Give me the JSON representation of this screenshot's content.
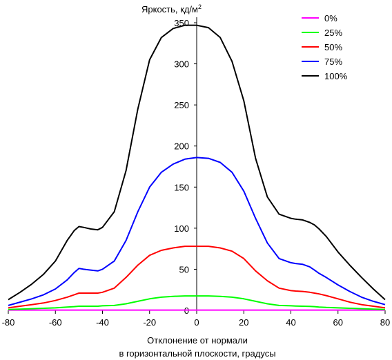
{
  "chart_data": {
    "type": "line",
    "title": "",
    "ylabel": "Яркость, кд/м",
    "ylabel_sup": "2",
    "xlabel_line1": "Отклонение от нормали",
    "xlabel_line2": "в горизонтальной плоскости, градусы",
    "xlim": [
      -80,
      80
    ],
    "ylim": [
      0,
      350
    ],
    "xticks": [
      -80,
      -60,
      -40,
      -20,
      0,
      20,
      40,
      60,
      80
    ],
    "yticks": [
      0,
      50,
      100,
      150,
      200,
      250,
      300,
      350
    ],
    "grid": false,
    "legend_position": "top-right",
    "x": [
      -80,
      -75,
      -70,
      -65,
      -60,
      -55,
      -52,
      -50,
      -48,
      -45,
      -42,
      -40,
      -35,
      -30,
      -25,
      -20,
      -15,
      -10,
      -5,
      0,
      5,
      10,
      15,
      20,
      25,
      30,
      35,
      40,
      42,
      45,
      48,
      50,
      52,
      55,
      60,
      65,
      70,
      75,
      80
    ],
    "series": [
      {
        "name": "0%",
        "color": "#ff00ff",
        "values": [
          0.3,
          0.3,
          0.3,
          0.3,
          0.3,
          0.3,
          0.3,
          0.3,
          0.3,
          0.3,
          0.3,
          0.3,
          0.3,
          0.3,
          0.3,
          0.3,
          0.3,
          0.3,
          0.3,
          0.3,
          0.3,
          0.3,
          0.3,
          0.3,
          0.3,
          0.3,
          0.3,
          0.3,
          0.3,
          0.3,
          0.3,
          0.3,
          0.3,
          0.3,
          0.3,
          0.3,
          0.3,
          0.3,
          0.3
        ]
      },
      {
        "name": "25%",
        "color": "#00ff00",
        "values": [
          1,
          1.5,
          2,
          2.5,
          3,
          4,
          4.5,
          5,
          5,
          5,
          5,
          5.5,
          6,
          8,
          11,
          14,
          16,
          17,
          17.5,
          17.5,
          17.5,
          17,
          16,
          14,
          11,
          8,
          6,
          5.5,
          5.3,
          5,
          4.8,
          4.5,
          4,
          3.5,
          3,
          2.5,
          2,
          1.5,
          1
        ]
      },
      {
        "name": "50%",
        "color": "#ff0000",
        "values": [
          3,
          5,
          7,
          9,
          12,
          16,
          19,
          21,
          21,
          21,
          21,
          22,
          27,
          40,
          55,
          67,
          73,
          76,
          78,
          78,
          78,
          76,
          72,
          63,
          48,
          36,
          27,
          24,
          23.5,
          23,
          22,
          21,
          20,
          18,
          14,
          10,
          7,
          5,
          3
        ]
      },
      {
        "name": "75%",
        "color": "#0000ff",
        "values": [
          6,
          10,
          14,
          19,
          26,
          37,
          46,
          51,
          50,
          49,
          48,
          50,
          60,
          85,
          120,
          150,
          168,
          178,
          184,
          186,
          185,
          180,
          168,
          145,
          112,
          82,
          63,
          58,
          57,
          56,
          53,
          49,
          45,
          40,
          31,
          23,
          16,
          11,
          7
        ]
      },
      {
        "name": "100%",
        "color": "#000000",
        "values": [
          13,
          22,
          32,
          44,
          60,
          85,
          97,
          102,
          101,
          99,
          98,
          101,
          120,
          170,
          245,
          305,
          332,
          343,
          347,
          347,
          344,
          332,
          303,
          255,
          185,
          138,
          117,
          112,
          111,
          110,
          107,
          104,
          99,
          90,
          71,
          55,
          40,
          26,
          13
        ]
      }
    ]
  }
}
